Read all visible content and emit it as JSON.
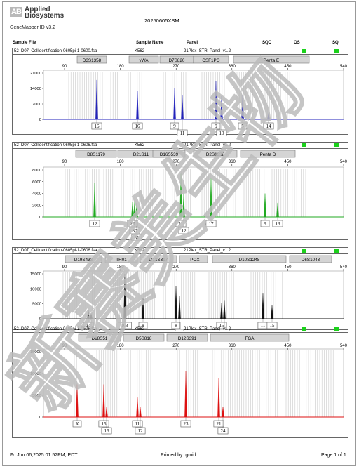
{
  "header": {
    "logo_mark": "AB",
    "brand_line1": "Applied",
    "brand_line2": "Biosystems",
    "product": "GeneMapper ID v3.2",
    "project": "20250605XSM"
  },
  "table_header": {
    "sample_file": "Sample File",
    "sample_name": "Sample Name",
    "panel": "Panel",
    "sqo": "SQO",
    "os": "OS",
    "sq": "SQ"
  },
  "footer": {
    "date": "Fri Jun 06,2025 01:52PM, PDT",
    "printed_by": "Printed by: gmid",
    "page": "Page 1 of 1"
  },
  "watermark": "新赛美生物",
  "panels": [
    {
      "sample_file": "52_D07_Cellidentification-0605pi-1-0600.fsa",
      "sample_name": "K562",
      "panel": "21Plex_STR_Panel_v1.2",
      "color": "#2222bb",
      "y_ticks": [
        "21000",
        "14000",
        "7000",
        "0"
      ],
      "x_ticks": [
        "90",
        "180",
        "270",
        "360",
        "450",
        "540"
      ],
      "markers": [
        "D3S1358",
        "vWA",
        "D7S820",
        "CSF1PO",
        "Penta E"
      ],
      "allele_labels": [
        "16",
        "16",
        "9",
        "9",
        "5",
        "14",
        "11",
        "10"
      ]
    },
    {
      "sample_file": "52_D07_Cellidentification-0605pi-1-0606.fsa",
      "sample_name": "K562",
      "panel": "21Plex_STR_Panel_v1.2",
      "color": "#22aa22",
      "y_ticks": [
        "8000",
        "6000",
        "4000",
        "2000",
        "0"
      ],
      "x_ticks": [
        "90",
        "180",
        "270",
        "360",
        "450",
        "540"
      ],
      "markers": [
        "D8S1179",
        "D21S11",
        "D16S539",
        "D2S1338",
        "Penta D"
      ],
      "allele_labels": [
        "12",
        "29",
        "30",
        "31",
        "11",
        "12",
        "17",
        "9",
        "13"
      ]
    },
    {
      "sample_file": "52_D07_Cellidentification-0605pi-1-0606.fsa",
      "sample_name": "K562",
      "panel": "21Plex_STR_Panel_v1.2",
      "color": "#111111",
      "y_ticks": [
        "15000",
        "10000",
        "5000",
        "0"
      ],
      "x_ticks": [
        "90",
        "180",
        "270",
        "360",
        "450",
        "540"
      ],
      "markers": [
        "D19S433",
        "TH01",
        "D13S317",
        "TPOX",
        "D10S1248",
        "D6S1043"
      ],
      "allele_labels": [
        "14",
        "15.2",
        "9.3",
        "8",
        "8",
        "9",
        "15",
        "16",
        "11",
        "15"
      ]
    },
    {
      "sample_file": "52_D07_Cellidentification-0605pi-1-0606.fsa",
      "sample_name": "K562",
      "panel": "21Plex_STR_Panel_v1.2",
      "color": "#dd1111",
      "y_ticks": [
        "15000",
        "10000",
        "5000",
        "0"
      ],
      "x_ticks": [
        "90",
        "180",
        "270",
        "360",
        "450",
        "540"
      ],
      "markers": [
        "D18S51",
        "D5S818",
        "D12S391",
        "FGA"
      ],
      "allele_labels": [
        "X",
        "15",
        "16",
        "11",
        "12",
        "23",
        "21",
        "24"
      ]
    }
  ]
}
